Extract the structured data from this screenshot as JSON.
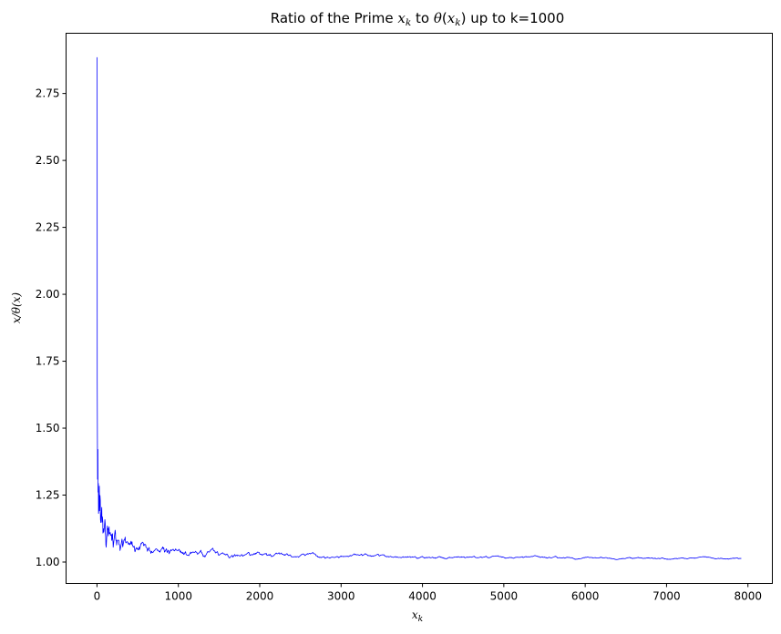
{
  "chart_data": {
    "type": "line",
    "title": {
      "prefix": "Ratio of the Prime ",
      "var1": "x",
      "var1_sub": "k",
      "mid": " to ",
      "func": "θ",
      "open": "(",
      "var2": "x",
      "var2_sub": "k",
      "close": ")",
      "suffix": " up to k=1000"
    },
    "xlabel": {
      "main": "x",
      "sub": "k"
    },
    "ylabel": "x/θ(x)",
    "xlim": [
      -380,
      8300
    ],
    "ylim": [
      0.92,
      2.975
    ],
    "xticks": [
      0,
      1000,
      2000,
      3000,
      4000,
      5000,
      6000,
      7000,
      8000
    ],
    "xtick_labels": [
      "0",
      "1000",
      "2000",
      "3000",
      "4000",
      "5000",
      "6000",
      "7000",
      "8000"
    ],
    "yticks": [
      1.0,
      1.25,
      1.5,
      1.75,
      2.0,
      2.25,
      2.5,
      2.75
    ],
    "ytick_labels": [
      "1.00",
      "1.25",
      "1.50",
      "1.75",
      "2.00",
      "2.25",
      "2.50",
      "2.75"
    ],
    "grid": false,
    "legend": "none",
    "series": [
      {
        "color": "#0000ff",
        "x": [
          2,
          3,
          5,
          7,
          11,
          13,
          17,
          19,
          23,
          29,
          31,
          37,
          41,
          43,
          47,
          53,
          59,
          61,
          67,
          71,
          73,
          79,
          83,
          89,
          97,
          101,
          103,
          107,
          109,
          113,
          127,
          131,
          137,
          139,
          149,
          151,
          157,
          163,
          167,
          173,
          179,
          181,
          191,
          193,
          197,
          199,
          211,
          223,
          227,
          229,
          233,
          239,
          241,
          251,
          257,
          263,
          269,
          271,
          277,
          281,
          283,
          293,
          307,
          311,
          313,
          317,
          331,
          337,
          347,
          349,
          353,
          359,
          367,
          373,
          379,
          383,
          389,
          397,
          401,
          409,
          419,
          421,
          431,
          433,
          439,
          443,
          449,
          457,
          461,
          463,
          467,
          479,
          487,
          491,
          499,
          503,
          509,
          521,
          523,
          541,
          547,
          557,
          563,
          569,
          571,
          577,
          587,
          593,
          599,
          601,
          607,
          613,
          617,
          619,
          631,
          641,
          643,
          647,
          653,
          659,
          661,
          673,
          677,
          683,
          691,
          701,
          709,
          719,
          727,
          733,
          739,
          743,
          751,
          757,
          761,
          769,
          773,
          787,
          797,
          809,
          811,
          821,
          823,
          827,
          829,
          839,
          853,
          857,
          859,
          863,
          877,
          881,
          883,
          887,
          907,
          911,
          919,
          929,
          937,
          941,
          947,
          953,
          967,
          971,
          977,
          983,
          991,
          997,
          1009,
          1013,
          1019,
          1021,
          1031,
          1033,
          1039,
          1049,
          1051,
          1061,
          1063,
          1069,
          1087,
          1091,
          1093,
          1097,
          1103,
          1109,
          1117,
          1123,
          1129,
          1151,
          1153,
          1163,
          1171,
          1181,
          1187,
          1193,
          1201,
          1213,
          1217,
          1223,
          1229,
          1231,
          1237,
          1249,
          1259,
          1277,
          1279,
          1283,
          1289,
          1291,
          1297,
          1301,
          1303,
          1307,
          1319,
          1321,
          1327,
          1361,
          1367,
          1373,
          1381,
          1399,
          1409,
          1423,
          1427,
          1429,
          1433,
          1439,
          1447,
          1451,
          1453,
          1459,
          1471,
          1481,
          1483,
          1487,
          1489,
          1493,
          1499,
          1511,
          1523,
          1531,
          1543,
          1549,
          1553,
          1559,
          1567,
          1571,
          1579,
          1583,
          1597,
          1601,
          1607,
          1609,
          1613,
          1619,
          1621,
          1627,
          1637,
          1657,
          1663,
          1667,
          1669,
          1693,
          1697,
          1699,
          1709,
          1721,
          1723,
          1733,
          1741,
          1747,
          1753,
          1759,
          1777,
          1783,
          1787,
          1789,
          1801,
          1811,
          1823,
          1831,
          1847,
          1861,
          1867,
          1871,
          1873,
          1877,
          1879,
          1889,
          1901,
          1907,
          1913,
          1931,
          1933,
          1949,
          1951,
          1973,
          1979,
          1987,
          1993,
          1997,
          1999,
          2003,
          2011,
          2017,
          2027,
          2029,
          2039,
          2053,
          2063,
          2069,
          2081,
          2083,
          2087,
          2089,
          2099,
          2111,
          2113,
          2129,
          2131,
          2137,
          2141,
          2143,
          2153,
          2161,
          2179,
          2203,
          2207,
          2213,
          2221,
          2237,
          2239,
          2243,
          2251,
          2267,
          2269,
          2273,
          2281,
          2287,
          2293,
          2297,
          2309,
          2311,
          2333,
          2339,
          2341,
          2347,
          2351,
          2357,
          2371,
          2377,
          2381,
          2383,
          2389,
          2393,
          2399,
          2411,
          2417,
          2423,
          2437,
          2441,
          2447,
          2459,
          2467,
          2473,
          2477,
          2503,
          2521,
          2531,
          2539,
          2543,
          2549,
          2551,
          2557,
          2579,
          2591,
          2593,
          2609,
          2617,
          2621,
          2633,
          2647,
          2657,
          2659,
          2663,
          2671,
          2677,
          2683,
          2687,
          2689,
          2693,
          2699,
          2707,
          2711,
          2713,
          2719,
          2729,
          2731,
          2741,
          2749,
          2753,
          2767,
          2777,
          2789,
          2791,
          2797,
          2801,
          2803,
          2819,
          2833,
          2837,
          2843,
          2851,
          2857,
          2861,
          2879,
          2887,
          2897,
          2903,
          2909,
          2917,
          2927,
          2939,
          2953,
          2957,
          2963,
          2969,
          2971,
          2999,
          3001,
          3011,
          3019,
          3023,
          3037,
          3041,
          3049,
          3061,
          3067,
          3079,
          3083,
          3089,
          3109,
          3119,
          3121,
          3137,
          3163,
          3167,
          3169,
          3181,
          3187,
          3191,
          3203,
          3209,
          3217,
          3221,
          3229,
          3251,
          3253,
          3257,
          3259,
          3271,
          3299,
          3301,
          3307,
          3313,
          3319,
          3323,
          3329,
          3331,
          3343,
          3347,
          3359,
          3361,
          3371,
          3373,
          3389,
          3391,
          3407,
          3413,
          3433,
          3449,
          3457,
          3461,
          3463,
          3467,
          3469,
          3491,
          3499,
          3511,
          3517,
          3527,
          3529,
          3533,
          3539,
          3541,
          3547,
          3557,
          3559,
          3571,
          3581,
          3583,
          3593,
          3607,
          3613,
          3617,
          3623,
          3631,
          3637,
          3643,
          3659,
          3671,
          3673,
          3677,
          3691,
          3697,
          3701,
          3709,
          3719,
          3727,
          3733,
          3739,
          3761,
          3767,
          3769,
          3779,
          3793,
          3797,
          3803,
          3821,
          3823,
          3833,
          3847,
          3851,
          3853,
          3863,
          3877,
          3881,
          3889,
          3907,
          3911,
          3917,
          3919,
          3923,
          3929,
          3931,
          3943,
          3947,
          3967,
          3989,
          4001,
          4003,
          4007,
          4013,
          4019,
          4021,
          4027,
          4049,
          4051,
          4057,
          4073,
          4079,
          4091,
          4093,
          4099,
          4111,
          4127,
          4129,
          4133,
          4139,
          4153,
          4157,
          4159,
          4177,
          4201,
          4211,
          4217,
          4219,
          4229,
          4231,
          4241,
          4243,
          4253,
          4259,
          4261,
          4271,
          4273,
          4283,
          4289,
          4297,
          4327,
          4337,
          4339,
          4349,
          4357,
          4363,
          4373,
          4391,
          4397,
          4409,
          4421,
          4423,
          4441,
          4447,
          4451,
          4457,
          4463,
          4481,
          4483,
          4493,
          4507,
          4513,
          4517,
          4519,
          4523,
          4547,
          4549,
          4561,
          4567,
          4583,
          4591,
          4597,
          4603,
          4621,
          4637,
          4639,
          4643,
          4649,
          4651,
          4657,
          4663,
          4673,
          4679,
          4691,
          4703,
          4721,
          4723,
          4729,
          4733,
          4751,
          4759,
          4783,
          4787,
          4789,
          4793,
          4799,
          4801,
          4813,
          4817,
          4831,
          4861,
          4871,
          4877,
          4889,
          4903,
          4909,
          4919,
          4931,
          4933,
          4937,
          4943,
          4951,
          4957,
          4967,
          4969,
          4973,
          4987,
          4993,
          4999,
          5003,
          5009,
          5011,
          5021,
          5023,
          5039,
          5051,
          5059,
          5077,
          5081,
          5087,
          5099,
          5101,
          5107,
          5113,
          5119,
          5147,
          5153,
          5167,
          5171,
          5179,
          5189,
          5197,
          5209,
          5227,
          5231,
          5233,
          5237,
          5261,
          5273,
          5279,
          5281,
          5297,
          5303,
          5309,
          5323,
          5333,
          5347,
          5351,
          5381,
          5387,
          5393,
          5399,
          5407,
          5413,
          5417,
          5419,
          5431,
          5437,
          5441,
          5443,
          5449,
          5471,
          5477,
          5479,
          5483,
          5501,
          5503,
          5507,
          5519,
          5521,
          5527,
          5531,
          5557,
          5563,
          5569,
          5573,
          5581,
          5591,
          5623,
          5639,
          5641,
          5647,
          5651,
          5653,
          5657,
          5659,
          5669,
          5683,
          5689,
          5693,
          5701,
          5711,
          5717,
          5737,
          5741,
          5743,
          5749,
          5779,
          5783,
          5791,
          5801,
          5807,
          5813,
          5821,
          5827,
          5839,
          5843,
          5849,
          5851,
          5857,
          5861,
          5867,
          5869,
          5879,
          5881,
          5897,
          5903,
          5923,
          5927,
          5939,
          5953,
          5981,
          5987,
          6007,
          6011,
          6029,
          6037,
          6043,
          6047,
          6053,
          6067,
          6073,
          6079,
          6089,
          6091,
          6101,
          6113,
          6121,
          6131,
          6133,
          6143,
          6151,
          6163,
          6173,
          6197,
          6199,
          6203,
          6211,
          6217,
          6221,
          6229,
          6247,
          6257,
          6263,
          6269,
          6271,
          6277,
          6287,
          6299,
          6301,
          6311,
          6317,
          6323,
          6329,
          6337,
          6343,
          6353,
          6359,
          6361,
          6367,
          6373,
          6379,
          6389,
          6397,
          6421,
          6427,
          6449,
          6451,
          6469,
          6473,
          6481,
          6491,
          6521,
          6529,
          6547,
          6551,
          6553,
          6563,
          6569,
          6571,
          6577,
          6581,
          6599,
          6607,
          6619,
          6637,
          6653,
          6659,
          6661,
          6673,
          6679,
          6689,
          6691,
          6701,
          6703,
          6709,
          6719,
          6733,
          6737,
          6761,
          6763,
          6779,
          6781,
          6791,
          6793,
          6803,
          6823,
          6827,
          6829,
          6833,
          6841,
          6857,
          6863,
          6869,
          6871,
          6883,
          6899,
          6907,
          6911,
          6917,
          6947,
          6949,
          6959,
          6961,
          6967,
          6971,
          6977,
          6983,
          6991,
          6997,
          7001,
          7013,
          7019,
          7027,
          7039,
          7043,
          7057,
          7069,
          7079,
          7103,
          7109,
          7121,
          7127,
          7129,
          7151,
          7159,
          7177,
          7187,
          7193,
          7207,
          7211,
          7213,
          7219,
          7229,
          7237,
          7243,
          7247,
          7253,
          7283,
          7297,
          7307,
          7309,
          7321,
          7331,
          7333,
          7349,
          7351,
          7369,
          7393,
          7411,
          7417,
          7433,
          7451,
          7457,
          7459,
          7477,
          7481,
          7487,
          7489,
          7499,
          7507,
          7517,
          7523,
          7529,
          7537,
          7541,
          7547,
          7549,
          7559,
          7561,
          7573,
          7577,
          7583,
          7589,
          7591,
          7603,
          7607,
          7621,
          7639,
          7643,
          7649,
          7669,
          7673,
          7681,
          7687,
          7691,
          7699,
          7703,
          7717,
          7723,
          7727,
          7741,
          7753,
          7757,
          7759,
          7789,
          7793,
          7817,
          7823,
          7829,
          7841,
          7853,
          7867,
          7873,
          7877,
          7879,
          7883,
          7901,
          7907,
          7919
        ]
      }
    ]
  }
}
